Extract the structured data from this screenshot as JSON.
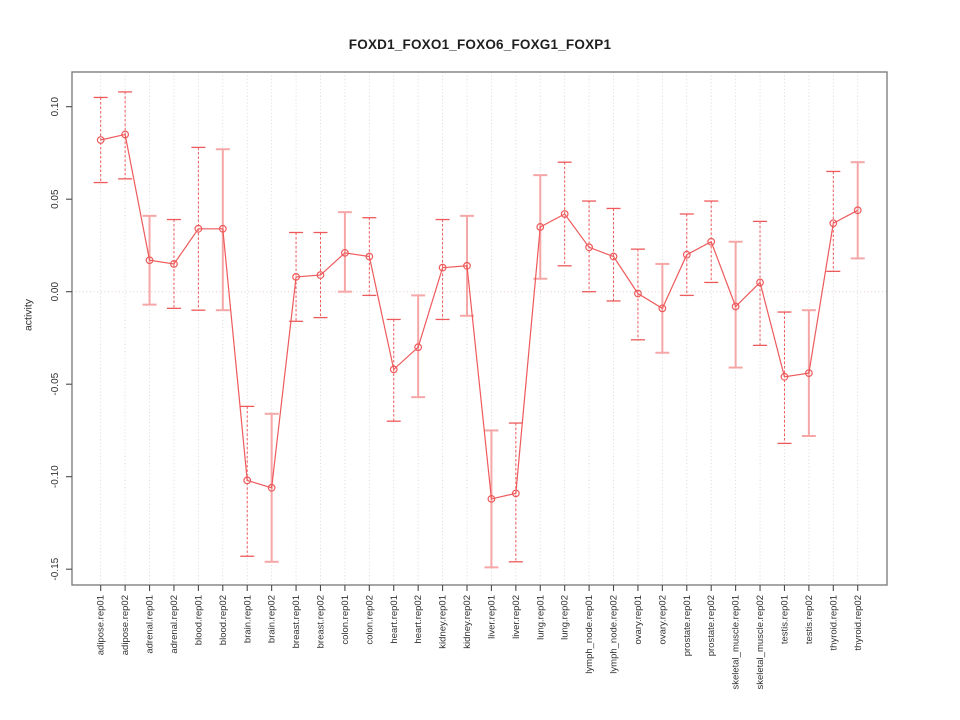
{
  "title": "FOXD1_FOXO1_FOXO6_FOXG1_FOXP1",
  "chart_data": {
    "type": "line",
    "title": "FOXD1_FOXO1_FOXO6_FOXG1_FOXP1",
    "xlabel": "",
    "ylabel": "activity",
    "ylim": [
      -0.158,
      0.119
    ],
    "yticks": [
      0.1,
      0.05,
      0.0,
      -0.05,
      -0.1,
      -0.15
    ],
    "ytick_labels": [
      "0.10",
      "0.05",
      "0.00",
      "-0.05",
      "-0.10",
      "-0.15"
    ],
    "grid": "vertical dotted gridline at each category; dotted horizontal line at y=0; no legend",
    "marker": "open-circle",
    "categories": [
      "adipose.rep01",
      "adipose.rep02",
      "adrenal.rep01",
      "adrenal.rep02",
      "blood.rep01",
      "blood.rep02",
      "brain.rep01",
      "brain.rep02",
      "breast.rep01",
      "breast.rep02",
      "colon.rep01",
      "colon.rep02",
      "heart.rep01",
      "heart.rep02",
      "kidney.rep01",
      "kidney.rep02",
      "liver.rep01",
      "liver.rep02",
      "lung.rep01",
      "lung.rep02",
      "lymph_node.rep01",
      "lymph_node.rep02",
      "ovary.rep01",
      "ovary.rep02",
      "prostate.rep01",
      "prostate.rep02",
      "skeletal_muscle.rep01",
      "skeletal_muscle.rep02",
      "testis.rep01",
      "testis.rep02",
      "thyroid.rep01",
      "thyroid.rep02"
    ],
    "series": [
      {
        "name": "activity",
        "values": [
          0.082,
          0.085,
          0.017,
          0.015,
          0.034,
          0.034,
          -0.102,
          -0.106,
          0.008,
          0.009,
          0.021,
          0.019,
          -0.042,
          -0.03,
          0.013,
          0.014,
          -0.112,
          -0.109,
          0.035,
          0.042,
          0.024,
          0.019,
          -0.001,
          -0.009,
          0.02,
          0.027,
          -0.008,
          0.005,
          -0.046,
          -0.044,
          0.037,
          0.044
        ],
        "ci_low": [
          0.059,
          0.061,
          -0.007,
          -0.009,
          -0.01,
          -0.01,
          -0.143,
          -0.146,
          -0.016,
          -0.014,
          0.0,
          -0.002,
          -0.07,
          -0.057,
          -0.015,
          -0.013,
          -0.149,
          -0.146,
          0.007,
          0.014,
          0.0,
          -0.005,
          -0.026,
          -0.033,
          -0.002,
          0.005,
          -0.041,
          -0.029,
          -0.082,
          -0.078,
          0.011,
          0.018
        ],
        "ci_high": [
          0.105,
          0.108,
          0.041,
          0.039,
          0.078,
          0.077,
          -0.062,
          -0.066,
          0.032,
          0.032,
          0.043,
          0.04,
          -0.015,
          -0.002,
          0.039,
          0.041,
          -0.075,
          -0.071,
          0.063,
          0.07,
          0.049,
          0.045,
          0.023,
          0.015,
          0.042,
          0.049,
          0.027,
          0.038,
          -0.011,
          -0.01,
          0.065,
          0.07
        ],
        "stem_styles": [
          "dashed",
          "dashed",
          "solid",
          "dashed",
          "dashed",
          "solid",
          "dashed",
          "solid",
          "dashed",
          "dashed",
          "solid",
          "dashed",
          "dashed",
          "solid",
          "dashed",
          "solid",
          "solid",
          "dashed",
          "solid",
          "dashed",
          "dashed",
          "dashed",
          "dashed",
          "solid",
          "dashed",
          "dashed",
          "solid",
          "dashed",
          "dashed",
          "solid",
          "dashed",
          "solid"
        ]
      }
    ],
    "colors": {
      "line": "#ee5a5b",
      "solid_stem": "#f5a7a7",
      "grid": "#d6d6d6",
      "zero_line": "#e4cccc",
      "frame": "#7f7f7f",
      "tick": "#4a4a4a",
      "text": "#303030"
    }
  }
}
